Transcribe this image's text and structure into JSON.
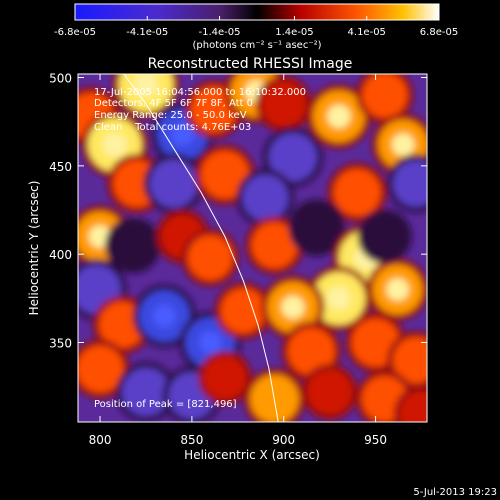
{
  "chart_data": {
    "type": "heatmap",
    "title": "Reconstructed RHESSI Image",
    "xlabel": "Heliocentric X (arcsec)",
    "ylabel": "Heliocentric Y (arcsec)",
    "xlim": [
      788,
      978
    ],
    "ylim": [
      305,
      502
    ],
    "xticks": [
      800,
      850,
      900,
      950
    ],
    "yticks": [
      350,
      400,
      450,
      500
    ],
    "colorbar": {
      "ticks": [
        "-6.8e-05",
        "-4.1e-05",
        "-1.4e-05",
        "1.4e-05",
        "4.1e-05",
        "6.8e-05"
      ],
      "units": "(photons cm⁻² s⁻¹ asec⁻²)",
      "range": [
        -6.8e-05,
        6.8e-05
      ]
    },
    "annotations": [
      "17-Jul-2005 16:04:56.000 to 16:10:32.000",
      "Detectors: 4F 5F 6F 7F 8F, Att 0",
      "Energy Range: 25.0 - 50.0 keV",
      "Clean    Total counts: 4.76E+03"
    ],
    "peak_label": "Position of Peak = [821,496]",
    "limb_curve": [
      [
        813,
        502
      ],
      [
        825,
        485
      ],
      [
        840,
        460
      ],
      [
        855,
        435
      ],
      [
        868,
        410
      ],
      [
        878,
        385
      ],
      [
        886,
        360
      ],
      [
        892,
        335
      ],
      [
        897,
        305
      ]
    ],
    "intensity_blobs": [
      {
        "x": 795,
        "y": 478,
        "v": 0.55
      },
      {
        "x": 808,
        "y": 462,
        "v": 0.9
      },
      {
        "x": 825,
        "y": 496,
        "v": 0.95
      },
      {
        "x": 845,
        "y": 468,
        "v": -0.75
      },
      {
        "x": 862,
        "y": 482,
        "v": 0.5
      },
      {
        "x": 885,
        "y": 492,
        "v": 0.75
      },
      {
        "x": 900,
        "y": 485,
        "v": 0.4
      },
      {
        "x": 905,
        "y": 455,
        "v": -0.6
      },
      {
        "x": 930,
        "y": 478,
        "v": 0.8
      },
      {
        "x": 955,
        "y": 490,
        "v": 0.45
      },
      {
        "x": 965,
        "y": 462,
        "v": 0.7
      },
      {
        "x": 972,
        "y": 440,
        "v": -0.5
      },
      {
        "x": 820,
        "y": 440,
        "v": 0.55
      },
      {
        "x": 840,
        "y": 440,
        "v": -0.6
      },
      {
        "x": 868,
        "y": 445,
        "v": 0.6
      },
      {
        "x": 890,
        "y": 432,
        "v": -0.5
      },
      {
        "x": 940,
        "y": 435,
        "v": 0.55
      },
      {
        "x": 800,
        "y": 410,
        "v": 0.7
      },
      {
        "x": 818,
        "y": 405,
        "v": -0.4
      },
      {
        "x": 845,
        "y": 410,
        "v": 0.3
      },
      {
        "x": 860,
        "y": 398,
        "v": 0.45
      },
      {
        "x": 895,
        "y": 405,
        "v": 0.5
      },
      {
        "x": 918,
        "y": 415,
        "v": -0.45
      },
      {
        "x": 945,
        "y": 398,
        "v": 0.95
      },
      {
        "x": 930,
        "y": 375,
        "v": 0.85
      },
      {
        "x": 962,
        "y": 380,
        "v": 0.7
      },
      {
        "x": 955,
        "y": 410,
        "v": -0.3
      },
      {
        "x": 798,
        "y": 380,
        "v": -0.65
      },
      {
        "x": 812,
        "y": 360,
        "v": 0.5
      },
      {
        "x": 835,
        "y": 365,
        "v": -0.75
      },
      {
        "x": 860,
        "y": 350,
        "v": -0.7
      },
      {
        "x": 878,
        "y": 368,
        "v": 0.45
      },
      {
        "x": 905,
        "y": 370,
        "v": 0.75
      },
      {
        "x": 915,
        "y": 345,
        "v": 0.55
      },
      {
        "x": 950,
        "y": 350,
        "v": 0.6
      },
      {
        "x": 972,
        "y": 340,
        "v": 0.5
      },
      {
        "x": 800,
        "y": 335,
        "v": 0.55
      },
      {
        "x": 825,
        "y": 322,
        "v": -0.6
      },
      {
        "x": 850,
        "y": 320,
        "v": -0.55
      },
      {
        "x": 868,
        "y": 330,
        "v": 0.3
      },
      {
        "x": 895,
        "y": 318,
        "v": 0.65
      },
      {
        "x": 925,
        "y": 322,
        "v": 0.4
      },
      {
        "x": 955,
        "y": 318,
        "v": 0.5
      },
      {
        "x": 975,
        "y": 310,
        "v": 0.35
      }
    ]
  },
  "footer": {
    "timestamp": "5-Jul-2013 19:23"
  }
}
